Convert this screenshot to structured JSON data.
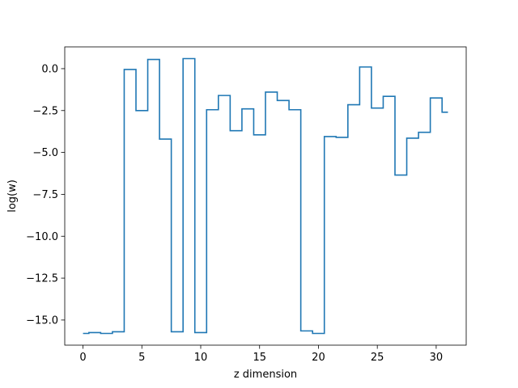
{
  "chart_data": {
    "type": "line",
    "drawstyle": "steps-mid",
    "title": "",
    "xlabel": "z dimension",
    "ylabel": "log(w)",
    "xlim": [
      -1.55,
      32.55
    ],
    "ylim": [
      -16.5,
      1.3
    ],
    "xticks": [
      0,
      5,
      10,
      15,
      20,
      25,
      30
    ],
    "xtick_labels": [
      "0",
      "5",
      "10",
      "15",
      "20",
      "25",
      "30"
    ],
    "yticks": [
      0.0,
      -2.5,
      -5.0,
      -7.5,
      -10.0,
      -12.5,
      -15.0
    ],
    "ytick_labels": [
      "0.0",
      "−2.5",
      "−5.0",
      "−7.5",
      "−10.0",
      "−12.5",
      "−15.0"
    ],
    "grid": false,
    "legend": "none",
    "series": [
      {
        "color": "#1f77b4",
        "x": [
          0,
          1,
          2,
          3,
          4,
          5,
          6,
          7,
          8,
          9,
          10,
          11,
          12,
          13,
          14,
          15,
          16,
          17,
          18,
          19,
          20,
          21,
          22,
          23,
          24,
          25,
          26,
          27,
          28,
          29,
          30,
          31
        ],
        "y": [
          -15.8,
          -15.75,
          -15.8,
          -15.7,
          -0.05,
          -2.5,
          0.55,
          -4.2,
          -15.7,
          0.6,
          -15.75,
          -2.45,
          -1.6,
          -3.7,
          -2.4,
          -3.95,
          -1.4,
          -1.9,
          -2.45,
          -15.65,
          -15.8,
          -4.05,
          -4.1,
          -2.15,
          0.1,
          -2.35,
          -1.65,
          -6.35,
          -4.15,
          -3.8,
          -1.75,
          -2.6
        ]
      }
    ]
  }
}
